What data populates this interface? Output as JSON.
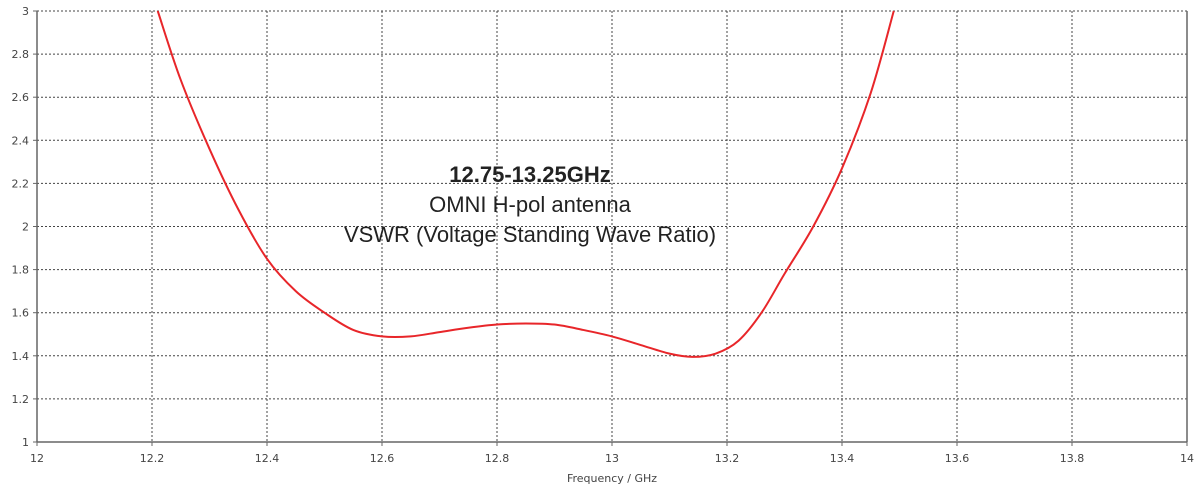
{
  "chart_data": {
    "type": "line",
    "title_lines": [
      "12.75-13.25GHz",
      "OMNI H-pol antenna",
      "VSWR (Voltage Standing Wave Ratio)"
    ],
    "xlabel": "Frequency / GHz",
    "ylabel": "",
    "xlim": [
      12,
      14
    ],
    "ylim": [
      1,
      3
    ],
    "xticks": [
      "12",
      "12.2",
      "12.4",
      "12.6",
      "12.8",
      "13",
      "13.2",
      "13.4",
      "13.6",
      "13.8",
      "14"
    ],
    "yticks": [
      "1",
      "1.2",
      "1.4",
      "1.6",
      "1.8",
      "2",
      "2.2",
      "2.4",
      "2.6",
      "2.8",
      "3"
    ],
    "grid": true,
    "series": [
      {
        "color": "#e8262a",
        "x": [
          12.21,
          12.25,
          12.3,
          12.35,
          12.4,
          12.45,
          12.5,
          12.55,
          12.6,
          12.65,
          12.7,
          12.75,
          12.8,
          12.85,
          12.9,
          12.95,
          13.0,
          13.05,
          13.1,
          13.14,
          13.18,
          13.22,
          13.26,
          13.3,
          13.35,
          13.4,
          13.45,
          13.49
        ],
        "y": [
          3.0,
          2.68,
          2.36,
          2.08,
          1.85,
          1.7,
          1.6,
          1.52,
          1.49,
          1.49,
          1.51,
          1.53,
          1.545,
          1.55,
          1.545,
          1.52,
          1.49,
          1.45,
          1.41,
          1.395,
          1.41,
          1.47,
          1.6,
          1.78,
          2.0,
          2.27,
          2.62,
          3.0
        ]
      }
    ]
  }
}
